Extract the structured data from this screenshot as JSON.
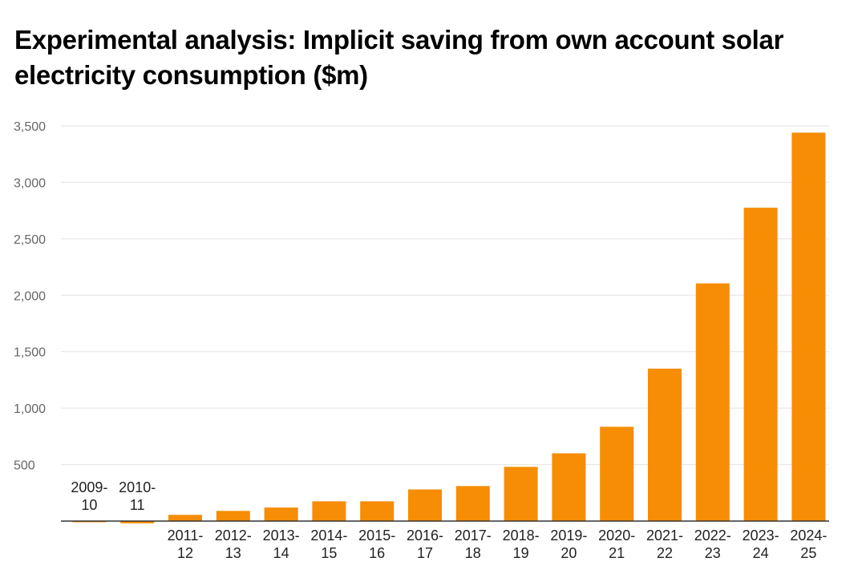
{
  "chart_data": {
    "type": "bar",
    "title": "Experimental analysis: Implicit saving from own account solar electricity consumption ($m)",
    "xlabel": "",
    "ylabel": "",
    "categories": [
      "2009-10",
      "2010-11",
      "2011-12",
      "2012-13",
      "2013-14",
      "2014-15",
      "2015-16",
      "2016-17",
      "2017-18",
      "2018-19",
      "2019-20",
      "2020-21",
      "2021-22",
      "2022-23",
      "2023-24",
      "2024-25"
    ],
    "category_lines": [
      [
        "2009-",
        "10"
      ],
      [
        "2010-",
        "11"
      ],
      [
        "2011-",
        "12"
      ],
      [
        "2012-",
        "13"
      ],
      [
        "2013-",
        "14"
      ],
      [
        "2014-",
        "15"
      ],
      [
        "2015-",
        "16"
      ],
      [
        "2016-",
        "17"
      ],
      [
        "2017-",
        "18"
      ],
      [
        "2018-",
        "19"
      ],
      [
        "2019-",
        "20"
      ],
      [
        "2020-",
        "21"
      ],
      [
        "2021-",
        "22"
      ],
      [
        "2022-",
        "23"
      ],
      [
        "2023-",
        "24"
      ],
      [
        "2024-",
        "25"
      ]
    ],
    "values": [
      -10,
      -20,
      55,
      90,
      120,
      175,
      175,
      280,
      310,
      480,
      600,
      835,
      1350,
      2105,
      2775,
      3440
    ],
    "ylim": [
      0,
      3500
    ],
    "yticks": [
      500,
      1000,
      1500,
      2000,
      2500,
      3000,
      3500
    ],
    "ytick_labels": [
      "500",
      "1,000",
      "1,500",
      "2,000",
      "2,500",
      "3,000",
      "3,500"
    ],
    "grid": true,
    "legend": "none",
    "bar_color": "#f68d04",
    "zero_line_color": "#333333",
    "grid_color": "#e2e2e2"
  }
}
